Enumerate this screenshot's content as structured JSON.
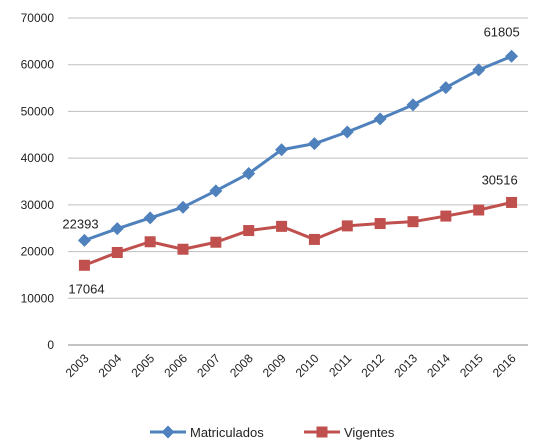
{
  "chart_data": {
    "type": "line",
    "categories": [
      "2003",
      "2004",
      "2005",
      "2006",
      "2007",
      "2008",
      "2009",
      "2010",
      "2011",
      "2012",
      "2013",
      "2014",
      "2015",
      "2016"
    ],
    "series": [
      {
        "name": "Matriculados",
        "color": "#4f81bd",
        "marker": "diamond",
        "values": [
          22393,
          24900,
          27200,
          29500,
          33000,
          36700,
          41800,
          43100,
          45600,
          48400,
          51400,
          55100,
          58900,
          61805
        ]
      },
      {
        "name": "Vigentes",
        "color": "#c0504d",
        "marker": "square",
        "values": [
          17064,
          19800,
          22100,
          20500,
          22000,
          24500,
          25400,
          22600,
          25500,
          26000,
          26400,
          27600,
          28900,
          30516
        ]
      }
    ],
    "data_labels": [
      {
        "series": 0,
        "index": 0,
        "text": "22393"
      },
      {
        "series": 0,
        "index": 13,
        "text": "61805"
      },
      {
        "series": 1,
        "index": 0,
        "text": "17064"
      },
      {
        "series": 1,
        "index": 13,
        "text": "30516"
      }
    ],
    "yticks": [
      "0",
      "10000",
      "20000",
      "30000",
      "40000",
      "50000",
      "60000",
      "70000"
    ],
    "ylim": [
      0,
      70000
    ],
    "grid": true,
    "legend_position": "bottom"
  }
}
